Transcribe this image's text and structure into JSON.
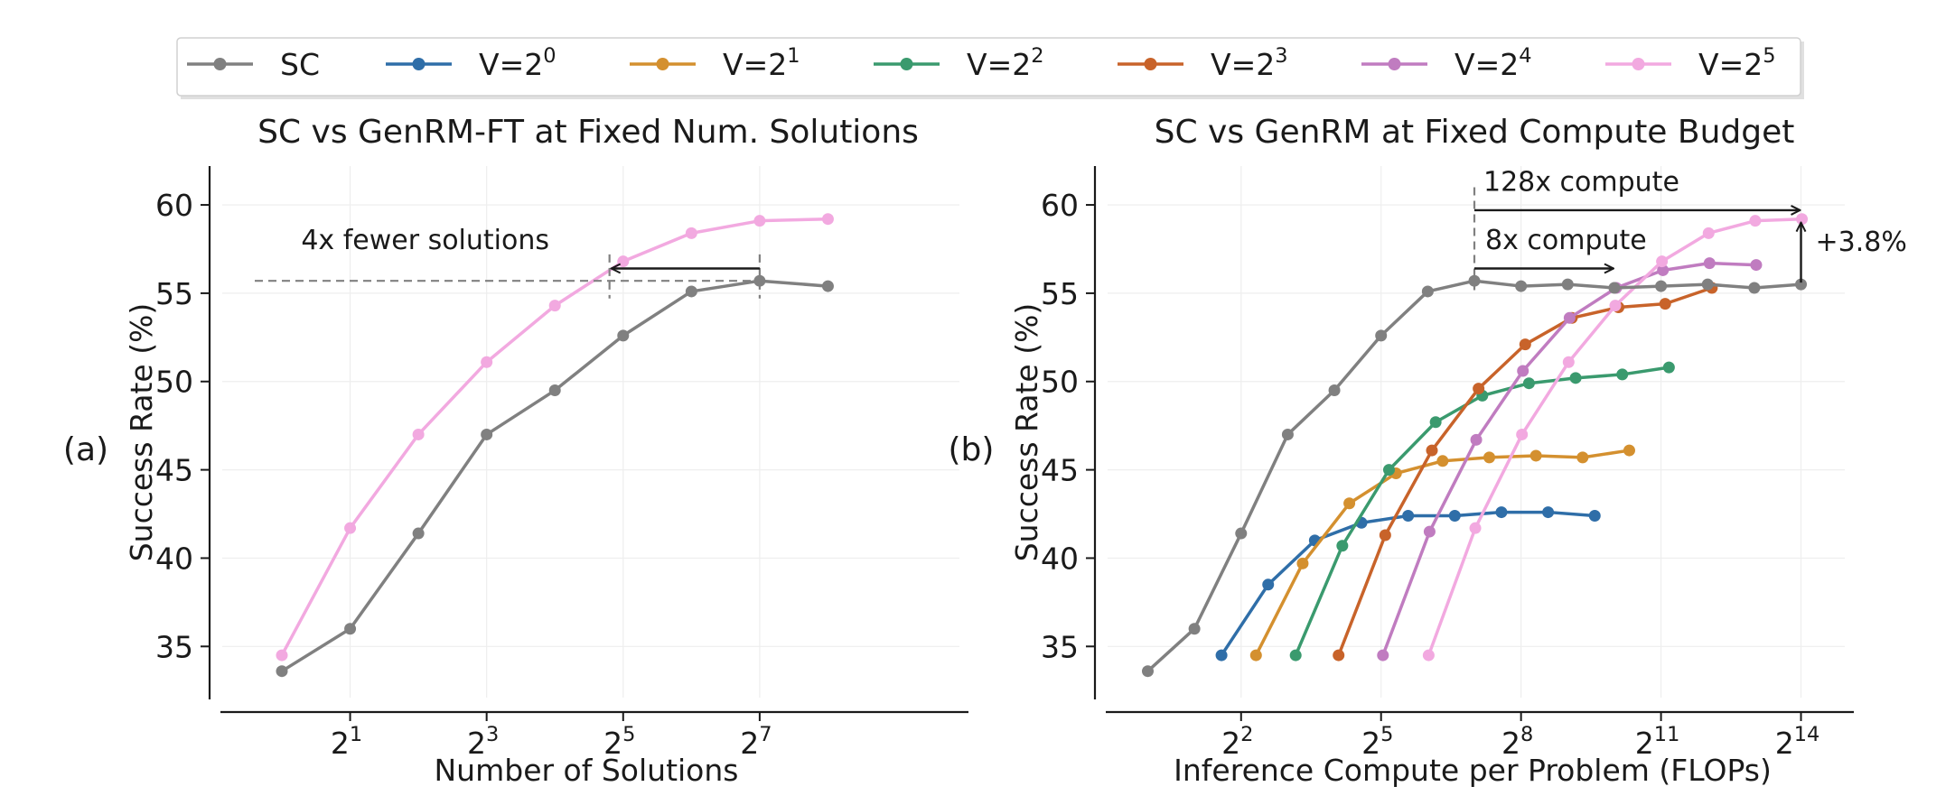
{
  "legend": {
    "placement": "top-center",
    "entries": [
      {
        "key": "SC",
        "label": "SC",
        "sup": "",
        "color": "#808080"
      },
      {
        "key": "V0",
        "label": "V=2",
        "sup": "0",
        "color": "#2f6ea8"
      },
      {
        "key": "V1",
        "label": "V=2",
        "sup": "1",
        "color": "#d4902f"
      },
      {
        "key": "V2",
        "label": "V=2",
        "sup": "2",
        "color": "#3a9a6e"
      },
      {
        "key": "V3",
        "label": "V=2",
        "sup": "3",
        "color": "#c8632a"
      },
      {
        "key": "V4",
        "label": "V=2",
        "sup": "4",
        "color": "#c07cc0"
      },
      {
        "key": "V5",
        "label": "V=2",
        "sup": "5",
        "color": "#f2a9e0"
      }
    ]
  },
  "chart_data": [
    {
      "type": "line",
      "panel_label": "(a)",
      "title": "SC vs GenRM-FT at Fixed Num. Solutions",
      "xlabel": "Number of Solutions",
      "ylabel": "Success Rate (%)",
      "x_scale": "log2",
      "xlim_log2": [
        -0.9,
        9.9
      ],
      "ylim": [
        32,
        62.2
      ],
      "xticks": [
        {
          "base": "2",
          "exp": "1",
          "log2": 1
        },
        {
          "base": "2",
          "exp": "3",
          "log2": 3
        },
        {
          "base": "2",
          "exp": "5",
          "log2": 5
        },
        {
          "base": "2",
          "exp": "7",
          "log2": 7
        }
      ],
      "yticks": [
        35,
        40,
        45,
        50,
        55,
        60
      ],
      "grid": true,
      "series": [
        {
          "key": "SC",
          "x": [
            1,
            2,
            4,
            8,
            16,
            32,
            64,
            128,
            256
          ],
          "y": [
            33.6,
            36.0,
            41.4,
            47.0,
            49.5,
            52.6,
            55.1,
            55.7,
            55.4
          ]
        },
        {
          "key": "V5",
          "x": [
            1,
            2,
            4,
            8,
            16,
            32,
            64,
            128,
            256
          ],
          "y": [
            34.5,
            41.7,
            47.0,
            51.1,
            54.3,
            56.8,
            58.4,
            59.1,
            59.2
          ]
        }
      ],
      "annotations": [
        {
          "name": "fewer-solutions",
          "text": "4x fewer solutions"
        }
      ]
    },
    {
      "type": "line",
      "panel_label": "(b)",
      "title": "SC vs GenRM at Fixed Compute Budget",
      "xlabel": "Inference Compute per Problem (FLOPs)",
      "ylabel": "Success Rate (%)",
      "x_scale": "log2",
      "xlim_log2": [
        -0.9,
        14.9
      ],
      "ylim": [
        32,
        62.2
      ],
      "xticks": [
        {
          "base": "2",
          "exp": "2",
          "log2": 2
        },
        {
          "base": "2",
          "exp": "5",
          "log2": 5
        },
        {
          "base": "2",
          "exp": "8",
          "log2": 8
        },
        {
          "base": "2",
          "exp": "11",
          "log2": 11
        },
        {
          "base": "2",
          "exp": "14",
          "log2": 14
        }
      ],
      "yticks": [
        35,
        40,
        45,
        50,
        55,
        60
      ],
      "grid": true,
      "series": [
        {
          "key": "SC",
          "x_log2": [
            0,
            1,
            2,
            3,
            4,
            5,
            6,
            7,
            8,
            9,
            10,
            11,
            12,
            13,
            14
          ],
          "y": [
            33.6,
            36.0,
            41.4,
            47.0,
            49.5,
            52.6,
            55.1,
            55.7,
            55.4,
            55.5,
            55.3,
            55.4,
            55.5,
            55.3,
            55.5
          ]
        },
        {
          "key": "V0",
          "x_log2": [
            1.58,
            2.58,
            3.58,
            4.58,
            5.58,
            6.58,
            7.58,
            8.58,
            9.58
          ],
          "y": [
            34.5,
            38.5,
            41.0,
            42.0,
            42.4,
            42.4,
            42.6,
            42.6,
            42.4
          ]
        },
        {
          "key": "V1",
          "x_log2": [
            2.32,
            3.32,
            4.32,
            5.32,
            6.32,
            7.32,
            8.32,
            9.32,
            10.32
          ],
          "y": [
            34.5,
            39.7,
            43.1,
            44.8,
            45.5,
            45.7,
            45.8,
            45.7,
            46.1
          ]
        },
        {
          "key": "V2",
          "x_log2": [
            3.17,
            4.17,
            5.17,
            6.17,
            7.17,
            8.17,
            9.17,
            10.17,
            11.17
          ],
          "y": [
            34.5,
            40.7,
            45.0,
            47.7,
            49.2,
            49.9,
            50.2,
            50.4,
            50.8
          ]
        },
        {
          "key": "V3",
          "x_log2": [
            4.09,
            5.09,
            6.09,
            7.09,
            8.09,
            9.09,
            10.09,
            11.09,
            12.09
          ],
          "y": [
            34.5,
            41.3,
            46.1,
            49.6,
            52.1,
            53.6,
            54.2,
            54.4,
            55.3
          ]
        },
        {
          "key": "V4",
          "x_log2": [
            5.04,
            6.04,
            7.04,
            8.04,
            9.04,
            10.04,
            11.04,
            12.04,
            13.04
          ],
          "y": [
            34.5,
            41.5,
            46.7,
            50.6,
            53.6,
            55.3,
            56.3,
            56.7,
            56.6
          ]
        },
        {
          "key": "V5",
          "x_log2": [
            6.02,
            7.02,
            8.02,
            9.02,
            10.02,
            11.02,
            12.02,
            13.02,
            14.02
          ],
          "y": [
            34.5,
            41.7,
            47.0,
            51.1,
            54.3,
            56.8,
            58.4,
            59.1,
            59.2
          ]
        }
      ],
      "annotations": [
        {
          "name": "compute-128x",
          "text": "128x compute"
        },
        {
          "name": "compute-8x",
          "text": "8x compute"
        },
        {
          "name": "gain",
          "text": "+3.8%"
        }
      ]
    }
  ]
}
